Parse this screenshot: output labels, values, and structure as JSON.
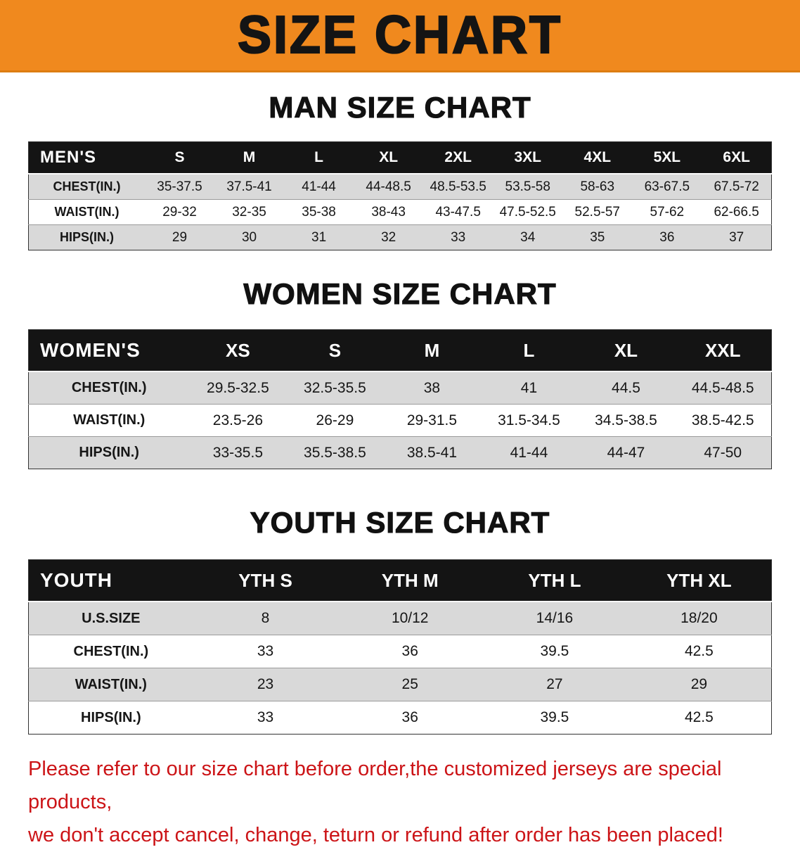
{
  "banner": {
    "title": "SIZE CHART"
  },
  "colors": {
    "banner_bg": "#f0891e",
    "table_header_bg": "#141414",
    "row_shade": "#d9d9d9",
    "note_color": "#cc1417"
  },
  "sections": {
    "men": {
      "heading": "MAN SIZE CHART",
      "table": {
        "header": [
          "MEN'S",
          "S",
          "M",
          "L",
          "XL",
          "2XL",
          "3XL",
          "4XL",
          "5XL",
          "6XL"
        ],
        "rows": [
          [
            "CHEST(IN.)",
            "35-37.5",
            "37.5-41",
            "41-44",
            "44-48.5",
            "48.5-53.5",
            "53.5-58",
            "58-63",
            "63-67.5",
            "67.5-72"
          ],
          [
            "WAIST(IN.)",
            "29-32",
            "32-35",
            "35-38",
            "38-43",
            "43-47.5",
            "47.5-52.5",
            "52.5-57",
            "57-62",
            "62-66.5"
          ],
          [
            "HIPS(IN.)",
            "29",
            "30",
            "31",
            "32",
            "33",
            "34",
            "35",
            "36",
            "37"
          ]
        ]
      }
    },
    "women": {
      "heading": "WOMEN SIZE CHART",
      "table": {
        "header": [
          "WOMEN'S",
          "XS",
          "S",
          "M",
          "L",
          "XL",
          "XXL"
        ],
        "rows": [
          [
            "CHEST(IN.)",
            "29.5-32.5",
            "32.5-35.5",
            "38",
            "41",
            "44.5",
            "44.5-48.5"
          ],
          [
            "WAIST(IN.)",
            "23.5-26",
            "26-29",
            "29-31.5",
            "31.5-34.5",
            "34.5-38.5",
            "38.5-42.5"
          ],
          [
            "HIPS(IN.)",
            "33-35.5",
            "35.5-38.5",
            "38.5-41",
            "41-44",
            "44-47",
            "47-50"
          ]
        ]
      }
    },
    "youth": {
      "heading": "YOUTH SIZE CHART",
      "table": {
        "header": [
          "YOUTH",
          "YTH S",
          "YTH M",
          "YTH L",
          "YTH XL"
        ],
        "rows": [
          [
            "U.S.SIZE",
            "8",
            "10/12",
            "14/16",
            "18/20"
          ],
          [
            "CHEST(IN.)",
            "33",
            "36",
            "39.5",
            "42.5"
          ],
          [
            "WAIST(IN.)",
            "23",
            "25",
            "27",
            "29"
          ],
          [
            "HIPS(IN.)",
            "33",
            "36",
            "39.5",
            "42.5"
          ]
        ]
      }
    }
  },
  "note": {
    "line1": "Please refer to our size chart before order,the customized jerseys are special products,",
    "line2": "we don't accept cancel, change, teturn or refund after order has been placed!"
  }
}
